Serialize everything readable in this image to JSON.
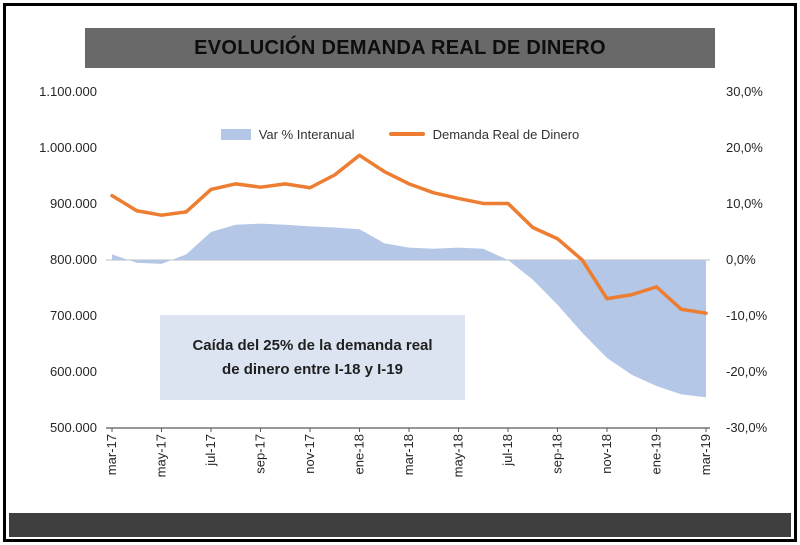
{
  "title": "EVOLUCIÓN DEMANDA REAL DE DINERO",
  "legend": {
    "items": [
      {
        "label": "Var % Interanual"
      },
      {
        "label": "Demanda Real de Dinero"
      }
    ]
  },
  "annotation": {
    "line1": "Caída del 25% de la demanda real",
    "line2": "de dinero entre I-18 y I-19"
  },
  "colors": {
    "line": "#ED7D31",
    "area": "#B4C7E7",
    "annotation_bg": "#DCE4F2",
    "title_bg": "#696969",
    "footer_bg": "#3F3F3F",
    "grid": "#BFBFBF",
    "axis": "#595959",
    "text": "#262626"
  },
  "chart_data": {
    "type": "combo",
    "title": "EVOLUCIÓN DEMANDA REAL DE DINERO",
    "x": [
      "mar-17",
      "abr-17",
      "may-17",
      "jun-17",
      "jul-17",
      "ago-17",
      "sep-17",
      "oct-17",
      "nov-17",
      "dic-17",
      "ene-18",
      "feb-18",
      "mar-18",
      "abr-18",
      "may-18",
      "jun-18",
      "jul-18",
      "ago-18",
      "sep-18",
      "oct-18",
      "nov-18",
      "dic-18",
      "ene-19",
      "feb-19",
      "mar-19"
    ],
    "x_tick_labels": [
      "mar-17",
      "may-17",
      "jul-17",
      "sep-17",
      "nov-17",
      "ene-18",
      "mar-18",
      "may-18",
      "jul-18",
      "sep-18",
      "nov-18",
      "ene-19",
      "mar-19"
    ],
    "x_tick_every": 2,
    "series": [
      {
        "name": "Var % Interanual",
        "type": "area",
        "axis": "right",
        "unit": "%",
        "values": [
          1.0,
          -0.5,
          -0.7,
          1.0,
          5.0,
          6.3,
          6.5,
          6.3,
          6.0,
          5.8,
          5.5,
          3.0,
          2.2,
          2.0,
          2.2,
          2.0,
          0.0,
          -3.5,
          -8.0,
          -13.0,
          -17.5,
          -20.5,
          -22.5,
          -24.0,
          -24.5
        ]
      },
      {
        "name": "Demanda Real de Dinero",
        "type": "line",
        "axis": "left",
        "values": [
          915000,
          888000,
          880000,
          886000,
          926000,
          936000,
          930000,
          936000,
          929000,
          952000,
          987000,
          958000,
          936000,
          920000,
          910000,
          901000,
          901000,
          858000,
          838000,
          800000,
          731000,
          738000,
          752000,
          712000,
          705000
        ]
      }
    ],
    "left_axis": {
      "min": 500000,
      "max": 1100000,
      "step": 100000,
      "tick_labels": [
        "1.100.000",
        "1.000.000",
        "900.000",
        "800.000",
        "700.000",
        "600.000",
        "500.000"
      ]
    },
    "right_axis": {
      "min": -30,
      "max": 30,
      "step": 10,
      "tick_labels": [
        "30,0%",
        "20,0%",
        "10,0%",
        "0,0%",
        "-10,0%",
        "-20,0%",
        "-30,0%"
      ]
    },
    "baseline_left_value": 800000,
    "legend_position": "top",
    "grid": "baseline-only"
  }
}
